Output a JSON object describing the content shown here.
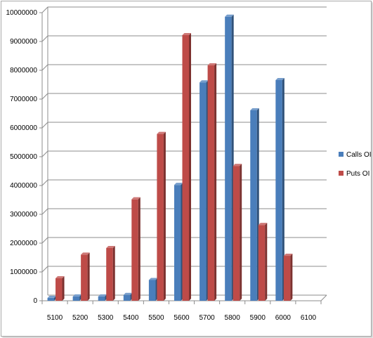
{
  "chart_data": {
    "type": "bar",
    "categories": [
      "5100",
      "5200",
      "5300",
      "5400",
      "5500",
      "5600",
      "5700",
      "5800",
      "5900",
      "6000",
      "6100"
    ],
    "series": [
      {
        "name": "Calls OI",
        "color": "#4a7ebb",
        "values": [
          100000,
          150000,
          150000,
          200000,
          720000,
          4020000,
          7580000,
          9860000,
          6610000,
          7660000,
          0
        ]
      },
      {
        "name": "Puts OI",
        "color": "#be4b48",
        "values": [
          780000,
          1600000,
          1830000,
          3520000,
          5790000,
          9220000,
          8170000,
          4680000,
          2630000,
          1560000,
          0
        ]
      }
    ],
    "y_ticks": [
      "0",
      "1000000",
      "2000000",
      "3000000",
      "4000000",
      "5000000",
      "6000000",
      "7000000",
      "8000000",
      "9000000",
      "10000000"
    ],
    "ylim": [
      0,
      10000000
    ],
    "grid": true,
    "legend": "right"
  }
}
